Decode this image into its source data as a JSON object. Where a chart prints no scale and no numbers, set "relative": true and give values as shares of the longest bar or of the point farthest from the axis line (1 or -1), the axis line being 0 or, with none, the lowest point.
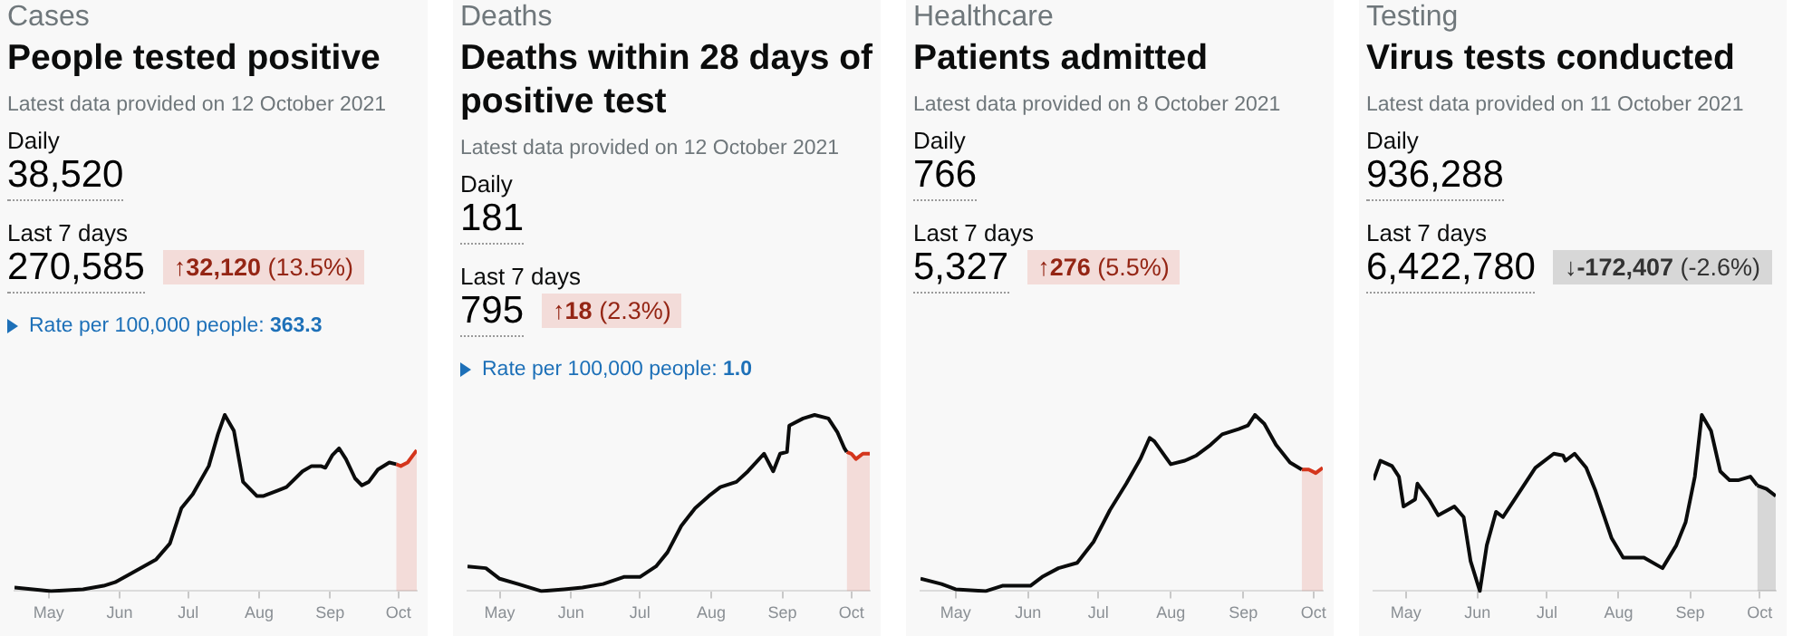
{
  "chart_data": [
    {
      "type": "line",
      "title": "People tested positive",
      "relative": true,
      "marker": "none",
      "xlim": [
        "2021-04-16",
        "2021-10-09"
      ],
      "annotations": [
        "Cases",
        "Latest data provided on 12 October 2021",
        "Daily",
        "38,520",
        "Last 7 days",
        "270,585",
        "↑32,120 (13.5%)",
        "Rate per 100,000 people: 363.3"
      ],
      "xticks": [
        {
          "value": "2021-05-01",
          "label": "May"
        },
        {
          "value": "2021-06-01",
          "label": "Jun"
        },
        {
          "value": "2021-07-01",
          "label": "Jul"
        },
        {
          "value": "2021-08-01",
          "label": "Aug"
        },
        {
          "value": "2021-09-01",
          "label": "Sep"
        },
        {
          "value": "2021-10-01",
          "label": "Oct"
        }
      ],
      "series": [
        {
          "color": "#0b0c0c",
          "x": [
            "2021-04-16",
            "2021-05-02",
            "2021-05-16",
            "2021-05-25",
            "2021-05-30",
            "2021-06-06",
            "2021-06-17",
            "2021-06-23",
            "2021-06-28",
            "2021-07-03",
            "2021-07-10",
            "2021-07-14",
            "2021-07-17",
            "2021-07-21",
            "2021-07-25",
            "2021-07-31",
            "2021-08-03",
            "2021-08-09",
            "2021-08-13",
            "2021-08-20",
            "2021-08-24",
            "2021-08-28",
            "2021-08-30",
            "2021-09-02",
            "2021-09-05",
            "2021-09-08",
            "2021-09-12",
            "2021-09-15",
            "2021-09-18",
            "2021-09-22",
            "2021-09-27",
            "2021-09-30"
          ],
          "values": [
            0.02,
            0,
            0.01,
            0.03,
            0.05,
            0.1,
            0.18,
            0.27,
            0.47,
            0.55,
            0.71,
            0.89,
            1,
            0.91,
            0.62,
            0.54,
            0.54,
            0.57,
            0.59,
            0.68,
            0.71,
            0.71,
            0.7,
            0.77,
            0.81,
            0.75,
            0.64,
            0.6,
            0.62,
            0.69,
            0.73,
            0.72
          ]
        },
        {
          "type": "area",
          "color": "#d4351c",
          "x": [
            "2021-09-30",
            "2021-10-02",
            "2021-10-05",
            "2021-10-09"
          ],
          "values": [
            0.72,
            0.71,
            0.73,
            0.8
          ]
        }
      ]
    },
    {
      "type": "line",
      "title": "Deaths within 28 days of positive test",
      "relative": true,
      "marker": "none",
      "xlim": [
        "2021-04-17",
        "2021-10-09"
      ],
      "annotations": [
        "Deaths",
        "Latest data provided on 12 October 2021",
        "Daily",
        "181",
        "Last 7 days",
        "795",
        "↑18 (2.3%)",
        "Rate per 100,000 people: 1.0"
      ],
      "xticks": [
        {
          "value": "2021-05-01",
          "label": "May"
        },
        {
          "value": "2021-06-01",
          "label": "Jun"
        },
        {
          "value": "2021-07-01",
          "label": "Jul"
        },
        {
          "value": "2021-08-01",
          "label": "Aug"
        },
        {
          "value": "2021-09-01",
          "label": "Sep"
        },
        {
          "value": "2021-10-01",
          "label": "Oct"
        }
      ],
      "series": [
        {
          "color": "#0b0c0c",
          "x": [
            "2021-04-17",
            "2021-04-25",
            "2021-05-01",
            "2021-05-09",
            "2021-05-19",
            "2021-05-29",
            "2021-06-06",
            "2021-06-15",
            "2021-06-24",
            "2021-07-01",
            "2021-07-08",
            "2021-07-13",
            "2021-07-19",
            "2021-07-25",
            "2021-07-31",
            "2021-08-05",
            "2021-08-12",
            "2021-08-17",
            "2021-08-24",
            "2021-08-28",
            "2021-08-31",
            "2021-09-03",
            "2021-09-04",
            "2021-09-10",
            "2021-09-15",
            "2021-09-21",
            "2021-09-25",
            "2021-09-28",
            "2021-09-29"
          ],
          "values": [
            0.14,
            0.13,
            0.07,
            0.04,
            0,
            0.01,
            0.02,
            0.04,
            0.08,
            0.08,
            0.14,
            0.22,
            0.37,
            0.47,
            0.54,
            0.59,
            0.62,
            0.68,
            0.78,
            0.68,
            0.78,
            0.79,
            0.94,
            0.98,
            1,
            0.98,
            0.9,
            0.81,
            0.79
          ]
        },
        {
          "type": "area",
          "color": "#d4351c",
          "x": [
            "2021-09-29",
            "2021-10-01",
            "2021-10-03",
            "2021-10-06",
            "2021-10-09"
          ],
          "values": [
            0.79,
            0.78,
            0.75,
            0.78,
            0.78
          ]
        }
      ]
    },
    {
      "type": "line",
      "title": "Patients admitted",
      "relative": true,
      "marker": "none",
      "xlim": [
        "2021-04-16",
        "2021-10-05"
      ],
      "annotations": [
        "Healthcare",
        "Latest data provided on 8 October 2021",
        "Daily",
        "766",
        "Last 7 days",
        "5,327",
        "↑276 (5.5%)"
      ],
      "xticks": [
        {
          "value": "2021-05-01",
          "label": "May"
        },
        {
          "value": "2021-06-01",
          "label": "Jun"
        },
        {
          "value": "2021-07-01",
          "label": "Jul"
        },
        {
          "value": "2021-08-01",
          "label": "Aug"
        },
        {
          "value": "2021-09-01",
          "label": "Sep"
        },
        {
          "value": "2021-10-01",
          "label": "Oct"
        }
      ],
      "series": [
        {
          "color": "#0b0c0c",
          "x": [
            "2021-04-16",
            "2021-04-25",
            "2021-05-01",
            "2021-05-14",
            "2021-05-21",
            "2021-06-02",
            "2021-06-07",
            "2021-06-14",
            "2021-06-22",
            "2021-06-29",
            "2021-07-06",
            "2021-07-13",
            "2021-07-19",
            "2021-07-23",
            "2021-07-25",
            "2021-08-01",
            "2021-08-07",
            "2021-08-12",
            "2021-08-18",
            "2021-08-23",
            "2021-08-30",
            "2021-09-03",
            "2021-09-06",
            "2021-09-10",
            "2021-09-15",
            "2021-09-21",
            "2021-09-26"
          ],
          "values": [
            0.07,
            0.04,
            0.01,
            0,
            0.03,
            0.03,
            0.08,
            0.13,
            0.16,
            0.28,
            0.46,
            0.61,
            0.75,
            0.87,
            0.85,
            0.72,
            0.74,
            0.77,
            0.83,
            0.89,
            0.92,
            0.94,
            1,
            0.95,
            0.83,
            0.73,
            0.69
          ]
        },
        {
          "type": "area",
          "color": "#d4351c",
          "x": [
            "2021-09-26",
            "2021-09-29",
            "2021-10-02",
            "2021-10-05"
          ],
          "values": [
            0.69,
            0.69,
            0.67,
            0.7
          ]
        }
      ]
    },
    {
      "type": "line",
      "title": "Virus tests conducted",
      "relative": true,
      "marker": "none",
      "xlim": [
        "2021-04-17",
        "2021-10-08"
      ],
      "annotations": [
        "Testing",
        "Latest data provided on 11 October 2021",
        "Daily",
        "936,288",
        "Last 7 days",
        "6,422,780",
        "↓-172,407 (-2.6%)"
      ],
      "xticks": [
        {
          "value": "2021-05-01",
          "label": "May"
        },
        {
          "value": "2021-06-01",
          "label": "Jun"
        },
        {
          "value": "2021-07-01",
          "label": "Jul"
        },
        {
          "value": "2021-08-01",
          "label": "Aug"
        },
        {
          "value": "2021-09-01",
          "label": "Sep"
        },
        {
          "value": "2021-10-01",
          "label": "Oct"
        }
      ],
      "series": [
        {
          "color": "#0b0c0c",
          "x": [
            "2021-04-17",
            "2021-04-20",
            "2021-04-25",
            "2021-04-28",
            "2021-04-30",
            "2021-05-05",
            "2021-05-06",
            "2021-05-11",
            "2021-05-15",
            "2021-05-22",
            "2021-05-26",
            "2021-05-29",
            "2021-06-02",
            "2021-06-05",
            "2021-06-09",
            "2021-06-12",
            "2021-06-17",
            "2021-06-26",
            "2021-07-04",
            "2021-07-08",
            "2021-07-09",
            "2021-07-13",
            "2021-07-18",
            "2021-07-22",
            "2021-07-29",
            "2021-08-03",
            "2021-08-12",
            "2021-08-20",
            "2021-08-26",
            "2021-08-30",
            "2021-09-03",
            "2021-09-06",
            "2021-09-10",
            "2021-09-14",
            "2021-09-18",
            "2021-09-22",
            "2021-09-27",
            "2021-09-30"
          ],
          "values": [
            0.63,
            0.74,
            0.71,
            0.65,
            0.48,
            0.52,
            0.61,
            0.52,
            0.43,
            0.48,
            0.42,
            0.17,
            0,
            0.26,
            0.45,
            0.42,
            0.52,
            0.7,
            0.78,
            0.77,
            0.74,
            0.78,
            0.7,
            0.57,
            0.3,
            0.19,
            0.19,
            0.13,
            0.26,
            0.39,
            0.65,
            1,
            0.91,
            0.68,
            0.63,
            0.63,
            0.65,
            0.6
          ]
        },
        {
          "type": "area",
          "color": "#0b0c0c",
          "x": [
            "2021-09-30",
            "2021-10-04",
            "2021-10-08"
          ],
          "values": [
            0.6,
            0.58,
            0.54
          ]
        }
      ]
    }
  ]
}
